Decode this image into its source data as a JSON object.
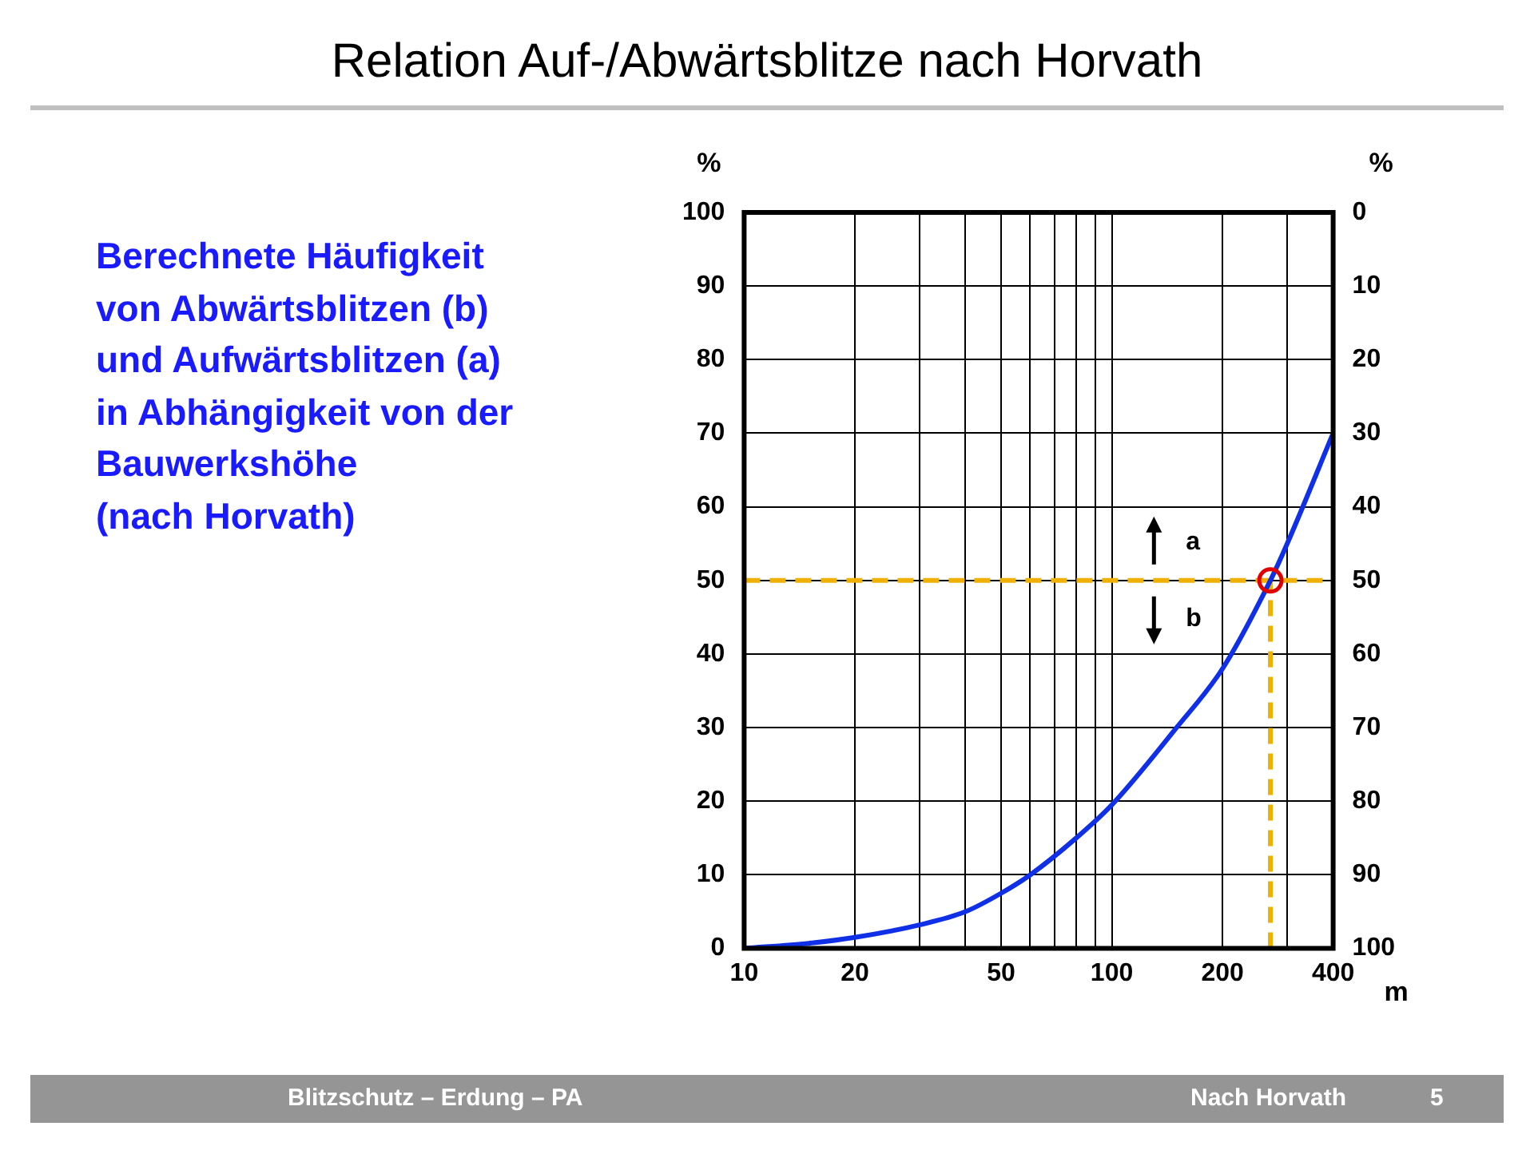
{
  "chart_data": {
    "type": "line",
    "title": "Relation Auf-/Abwärtsblitze nach Horvath",
    "xlabel": "m",
    "ylabel": "%",
    "y2label": "%",
    "log": "x",
    "grid": true,
    "legend": false,
    "xlim": [
      10,
      400
    ],
    "xticks": [
      10,
      20,
      {
        "value": 30,
        "label": null
      },
      {
        "value": 40,
        "label": null
      },
      50,
      {
        "value": 60,
        "label": null
      },
      {
        "value": 70,
        "label": null
      },
      {
        "value": 80,
        "label": null
      },
      {
        "value": 90,
        "label": null
      },
      100,
      200,
      {
        "value": 300,
        "label": null
      },
      400
    ],
    "ylim": [
      0,
      100
    ],
    "yticks": [
      0,
      10,
      20,
      30,
      40,
      50,
      60,
      70,
      80,
      90,
      100
    ],
    "y2lim": [
      100,
      0
    ],
    "y2ticks": [
      0,
      10,
      20,
      30,
      40,
      50,
      60,
      70,
      80,
      90,
      100
    ],
    "series": [
      {
        "type": "line",
        "color": "#1030e8",
        "marker": "none",
        "x": [
          10,
          15,
          20,
          30,
          40,
          50,
          60,
          80,
          100,
          150,
          200,
          270,
          300,
          400
        ],
        "values": [
          0,
          0.7,
          1.5,
          3.2,
          5,
          7.5,
          10,
          15,
          19.5,
          30,
          38,
          50,
          55,
          70
        ]
      },
      {
        "type": "scatter",
        "color": "#e00000",
        "marker": "circle",
        "x": [
          270
        ],
        "values": [
          50
        ]
      }
    ],
    "ref_lines": [
      {
        "axis": "y",
        "value": 50,
        "color": "#f0b000",
        "line_style": "dashed"
      },
      {
        "axis": "x",
        "value": 270,
        "color": "#f0b000",
        "line_style": "dashed"
      }
    ],
    "annotations": [
      "Berechnete Häufigkeit\nvon Abwärtsblitzen (b)\nund Aufwärtsblitzen (a)\nin Abhängigkeit von der\nBauwerkshöhe\n(nach Horvath)",
      "Blitzschutz – Erdung – PA",
      "Nach Horvath",
      "5",
      "a",
      "b"
    ]
  }
}
